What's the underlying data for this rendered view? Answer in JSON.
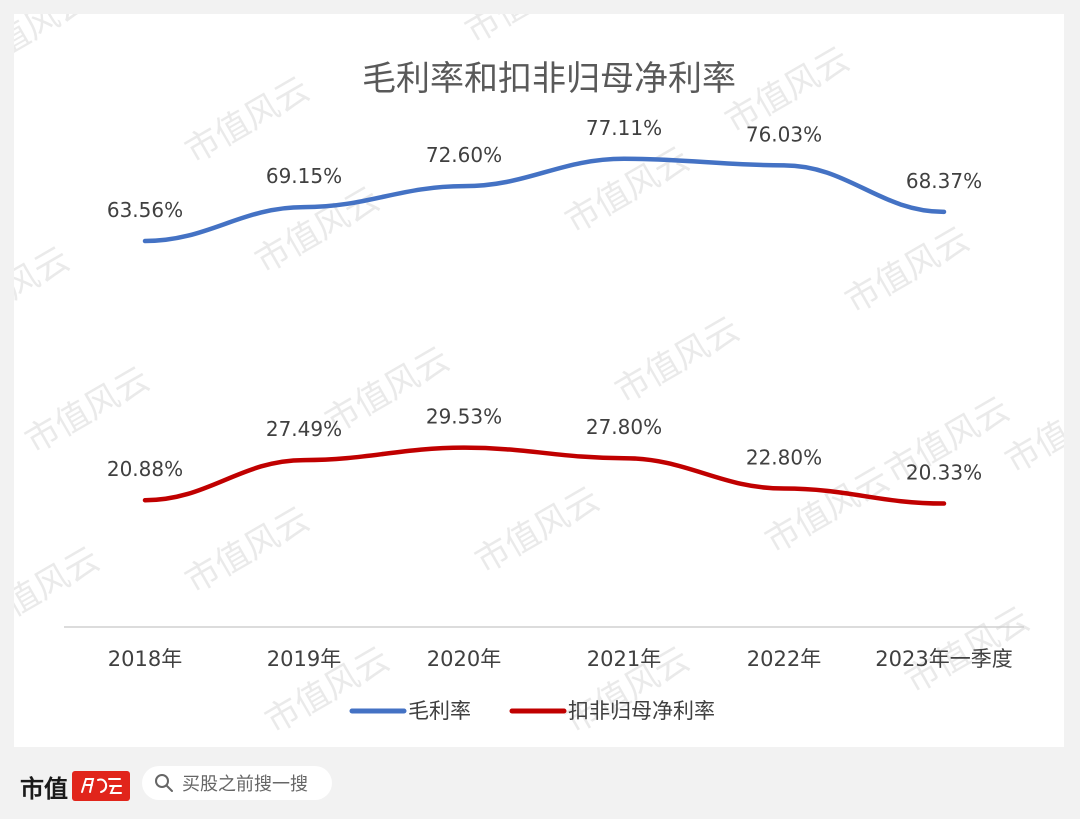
{
  "chart_data": {
    "type": "line",
    "title": "毛利率和扣非归母净利率",
    "categories": [
      "2018年",
      "2019年",
      "2020年",
      "2021年",
      "2022年",
      "2023年一季度"
    ],
    "series": [
      {
        "name": "毛利率",
        "color": "#4472c4",
        "values": [
          63.56,
          69.15,
          72.6,
          77.11,
          76.03,
          68.37
        ],
        "labels": [
          "63.56%",
          "69.15%",
          "72.60%",
          "77.11%",
          "76.03%",
          "68.37%"
        ]
      },
      {
        "name": "扣非归母净利率",
        "color": "#c00000",
        "values": [
          20.88,
          27.49,
          29.53,
          27.8,
          22.8,
          20.33
        ],
        "labels": [
          "20.88%",
          "27.49%",
          "29.53%",
          "27.80%",
          "22.80%",
          "20.33%"
        ]
      }
    ],
    "xlabel": "",
    "ylabel": "",
    "ylim": [
      0,
      90
    ],
    "grid": false,
    "legend": "bottom"
  },
  "watermark": "市值风云",
  "footer": {
    "brand": "市值",
    "logo_text": "风云",
    "search_placeholder": "买股之前搜一搜"
  }
}
